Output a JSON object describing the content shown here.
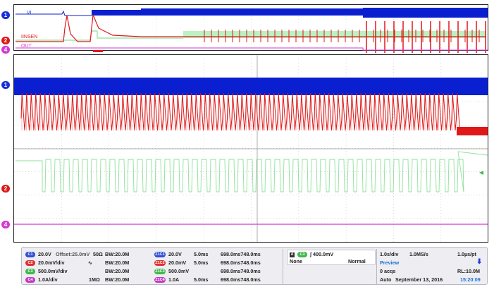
{
  "colors": {
    "ch1": "#0a1fd0",
    "ch2": "#e01818",
    "ch3": "#8ee09a",
    "ch4": "#d23ad2",
    "time": "#1d6fd6"
  },
  "markers": {
    "top": [
      {
        "num": "1",
        "label": "VL"
      },
      {
        "num": "2",
        "label": "IINSEN"
      },
      {
        "num": "4",
        "label": "OUT"
      }
    ],
    "main": [
      "1",
      "2",
      "4"
    ]
  },
  "channels": [
    {
      "badge": "C1",
      "scale": "20.0V",
      "extra": "Offset:25.0mV",
      "imp": "50Ω",
      "bw": "BW:20.0M",
      "zbadge": "Z1C1",
      "zscale": "20.0V",
      "ztime": "5.0ms",
      "zrange": "698.0ms748.0ms",
      "color": "#2f4fd6"
    },
    {
      "badge": "C2",
      "scale": "20.0mV/div",
      "extra": "",
      "imp": "∿",
      "bw": "BW:20.0M",
      "zbadge": "Z1C2",
      "zscale": "20.0mV",
      "ztime": "5.0ms",
      "zrange": "698.0ms748.0ms",
      "color": "#e03030"
    },
    {
      "badge": "C3",
      "scale": "500.0mV/div",
      "extra": "",
      "imp": "",
      "bw": "BW:20.0M",
      "zbadge": "Z1C3",
      "zscale": "500.0mV",
      "ztime": "",
      "zrange": "698.0ms748.0ms",
      "color": "#3fb84a"
    },
    {
      "badge": "C4",
      "scale": "1.0A/div",
      "extra": "",
      "imp": "1MΩ",
      "bw": "BW:20.0M",
      "zbadge": "Z1C4",
      "zscale": "1.0A",
      "ztime": "5.0ms",
      "zrange": "698.0ms748.0ms",
      "color": "#c43ac4"
    }
  ],
  "trigger": {
    "source": "C3",
    "slope": "∫",
    "level": "400.0mV",
    "coupling": "None",
    "mode": "Normal"
  },
  "acquisition": {
    "timebase": "1.0s/div",
    "sample_rate": "1.0MS/s",
    "resolution": "1.0µs/pt",
    "mode": "Preview",
    "acqs": "0 acqs",
    "record_length": "RL:10.0M",
    "run_mode": "Auto",
    "date": "September 13, 2016",
    "time": "15:20:09"
  }
}
